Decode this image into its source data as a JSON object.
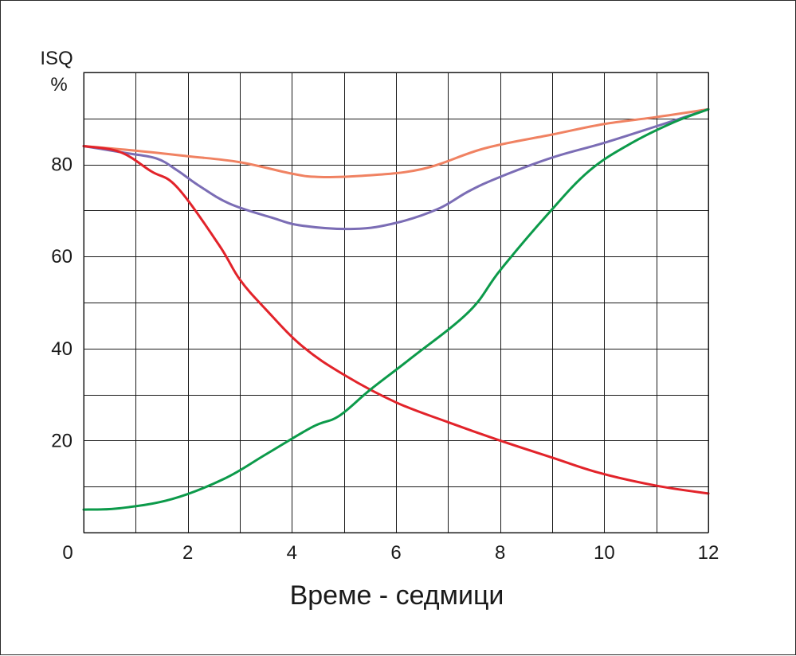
{
  "chart_data": {
    "type": "line",
    "title": "",
    "xlabel": "Време - седмици",
    "ylabel": "ISQ",
    "ylabel_unit": "%",
    "xlim": [
      0,
      12
    ],
    "ylim": [
      0,
      100
    ],
    "x_ticks": [
      0,
      2,
      4,
      6,
      8,
      10,
      12
    ],
    "y_ticks": [
      20,
      40,
      60,
      80
    ],
    "x_gridlines": [
      0,
      1,
      2,
      3,
      4,
      5,
      6,
      7,
      8,
      9,
      10,
      11,
      12
    ],
    "y_gridlines": [
      0,
      10,
      20,
      30,
      40,
      50,
      60,
      70,
      80,
      90,
      100
    ],
    "grid": true,
    "legend": "none",
    "series": [
      {
        "color": "#f08262",
        "x": [
          0,
          1,
          2,
          3,
          4,
          4.5,
          5.3,
          6.5,
          7.7,
          9,
          10,
          11,
          12
        ],
        "y": [
          84,
          83,
          81.8,
          80.5,
          78,
          77.3,
          77.5,
          79,
          83.5,
          86.5,
          88.8,
          90.3,
          92
        ]
      },
      {
        "color": "#7b6db5",
        "x": [
          0,
          0.8,
          1.4,
          1.8,
          2.2,
          2.8,
          3.6,
          4.2,
          5.2,
          6,
          6.8,
          7.4,
          8,
          9,
          10,
          11,
          12
        ],
        "y": [
          84,
          82.5,
          81.3,
          78.7,
          75.5,
          71.5,
          68.5,
          66.7,
          66,
          67.3,
          70.3,
          74.2,
          77.3,
          81.5,
          84.7,
          88.3,
          92
        ]
      },
      {
        "color": "#e2232a",
        "x": [
          0,
          0.7,
          1.3,
          1.8,
          2.6,
          3,
          3.5,
          4.2,
          5,
          6,
          7,
          8,
          9,
          9.9,
          11,
          12
        ],
        "y": [
          84,
          82.7,
          78.5,
          75,
          62.5,
          55,
          48.5,
          40.5,
          34.3,
          28.3,
          24,
          20,
          16.3,
          13,
          10.2,
          8.5
        ]
      },
      {
        "color": "#0c9a4a",
        "x": [
          0,
          0.7,
          1.7,
          2.7,
          3.5,
          4.4,
          4.9,
          5.5,
          6.3,
          7.4,
          8,
          8.9,
          9.7,
          10.5,
          11.3,
          12
        ],
        "y": [
          5,
          5.3,
          7.3,
          11.7,
          17,
          23,
          25.3,
          31,
          38,
          48,
          57,
          69,
          78.5,
          84.5,
          89,
          92
        ]
      }
    ]
  }
}
